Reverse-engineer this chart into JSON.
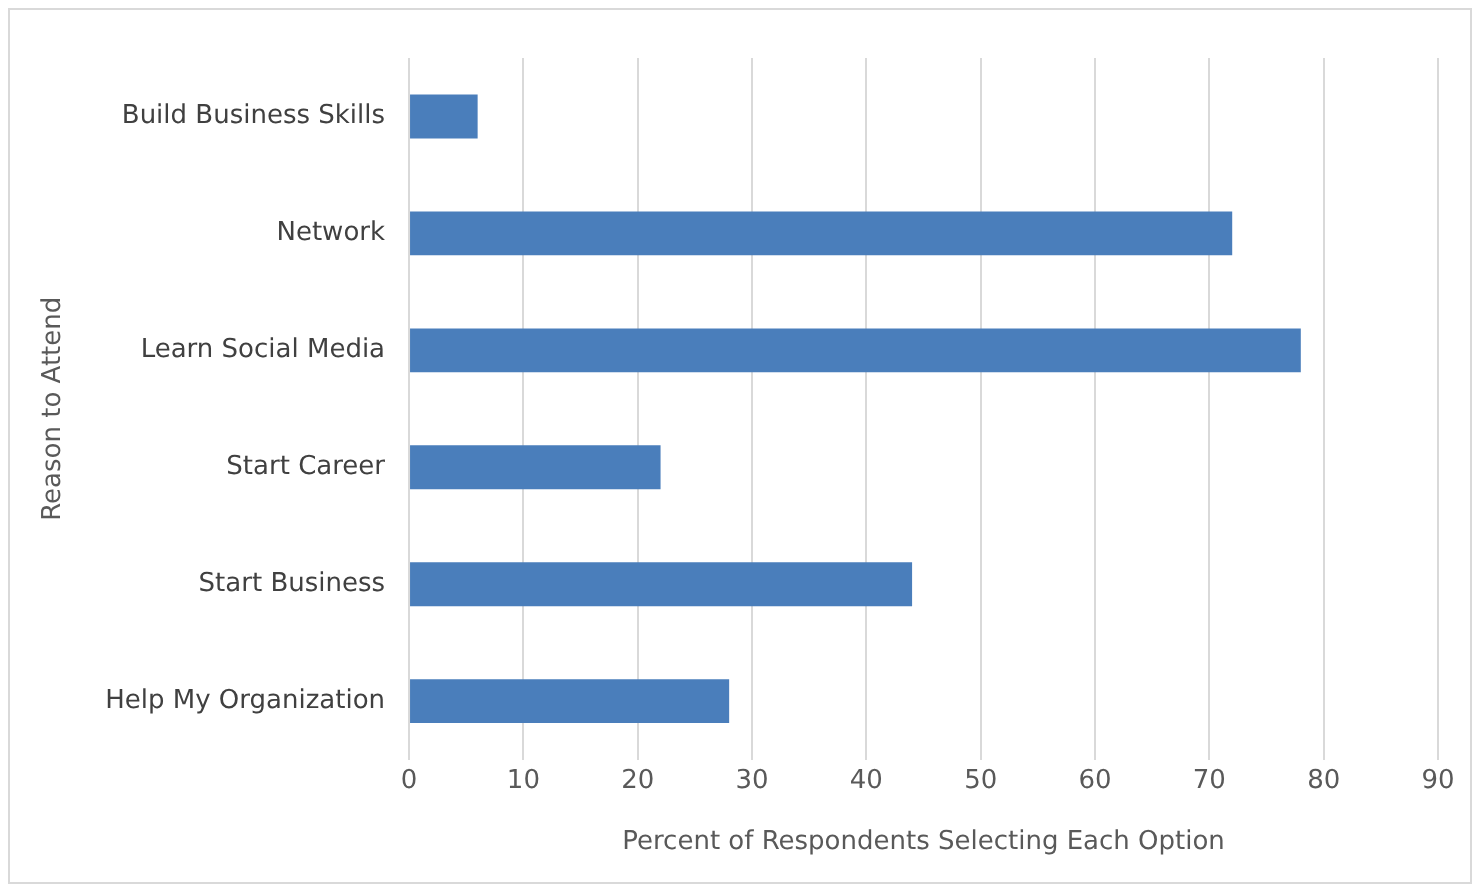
{
  "chart_data": {
    "type": "bar",
    "orientation": "horizontal",
    "xlabel": "Percent of Respondents Selecting Each Option",
    "ylabel": "Reason to Attend",
    "categories": [
      "Build Business Skills",
      "Network",
      "Learn Social Media",
      "Start Career",
      "Start Business",
      "Help My Organization"
    ],
    "values": [
      6,
      72,
      78,
      22,
      44,
      28
    ],
    "color": "#4a7ebb",
    "xlim": [
      0,
      90
    ],
    "xticks": [
      0,
      10,
      20,
      30,
      40,
      50,
      60,
      70,
      80,
      90
    ],
    "grid": "x"
  }
}
